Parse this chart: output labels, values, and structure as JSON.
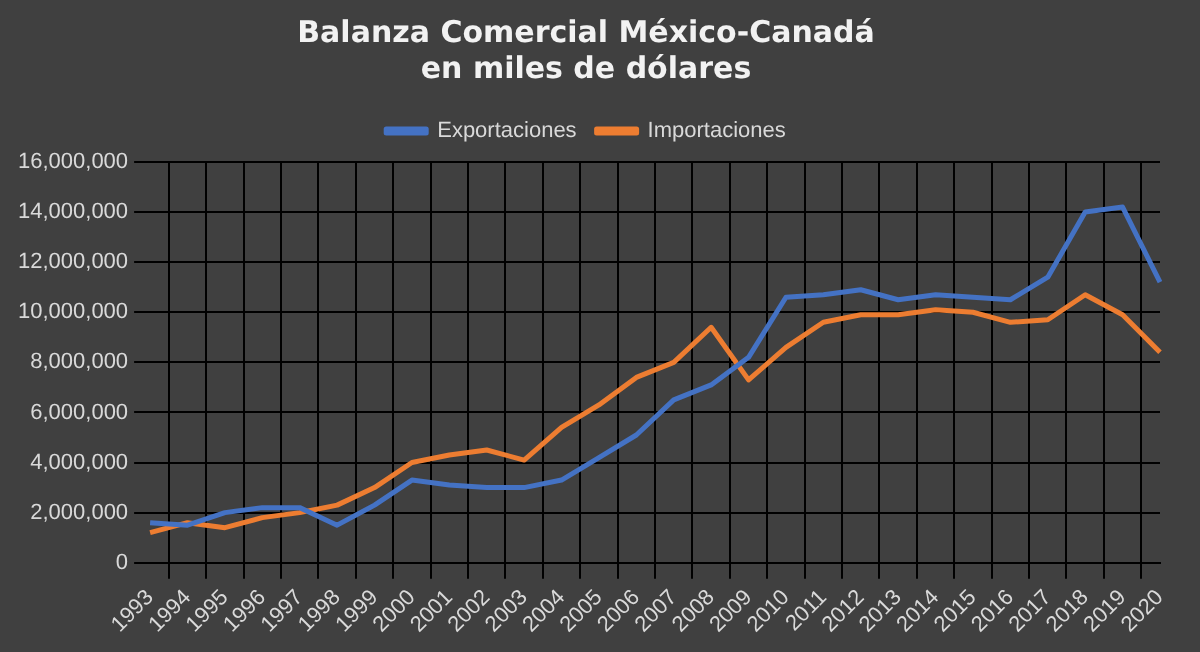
{
  "chart_data": {
    "type": "line",
    "title": "Balanza Comercial México-Canadá\nen miles de dólares",
    "categories": [
      "1993",
      "1994",
      "1995",
      "1996",
      "1997",
      "1998",
      "1999",
      "2000",
      "2001",
      "2002",
      "2003",
      "2004",
      "2005",
      "2006",
      "2007",
      "2008",
      "2009",
      "2010",
      "2011",
      "2012",
      "2013",
      "2014",
      "2015",
      "2016",
      "2017",
      "2018",
      "2019",
      "2020"
    ],
    "series": [
      {
        "name": "Exportaciones",
        "color": "#4472c4",
        "values": [
          1600000,
          1500000,
          2000000,
          2200000,
          2200000,
          1500000,
          2300000,
          3300000,
          3100000,
          3000000,
          3000000,
          3300000,
          4200000,
          5100000,
          6500000,
          7100000,
          8200000,
          10600000,
          10700000,
          10900000,
          10500000,
          10700000,
          10600000,
          10500000,
          11400000,
          14000000,
          14200000,
          11200000
        ]
      },
      {
        "name": "Importaciones",
        "color": "#ed7d31",
        "values": [
          1200000,
          1600000,
          1400000,
          1800000,
          2000000,
          2300000,
          3000000,
          4000000,
          4300000,
          4500000,
          4100000,
          5400000,
          6300000,
          7400000,
          8000000,
          9400000,
          7300000,
          8600000,
          9600000,
          9900000,
          9900000,
          10100000,
          10000000,
          9600000,
          9700000,
          10700000,
          9900000,
          8400000
        ]
      }
    ],
    "ylim": [
      0,
      16000000
    ],
    "yticks": [
      0,
      {
        "value": 2000000,
        "label": "2,000,000"
      },
      {
        "value": 4000000,
        "label": "4,000,000"
      },
      {
        "value": 6000000,
        "label": "6,000,000"
      },
      {
        "value": 8000000,
        "label": "8,000,000"
      },
      {
        "value": 10000000,
        "label": "10,000,000"
      },
      {
        "value": 12000000,
        "label": "12,000,000"
      },
      {
        "value": 14000000,
        "label": "14,000,000"
      },
      {
        "value": 16000000,
        "label": "16,000,000"
      }
    ],
    "grid": true,
    "legend": "top",
    "marker": "none",
    "line_style": "solid"
  }
}
